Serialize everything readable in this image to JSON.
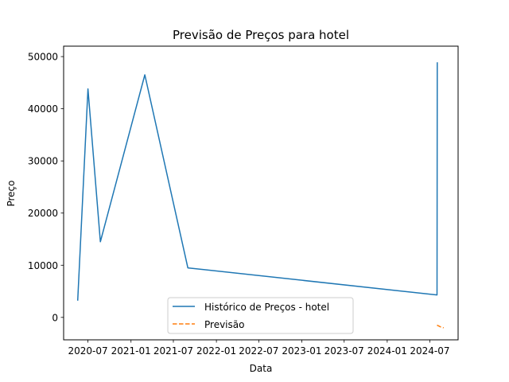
{
  "chart_data": {
    "type": "line",
    "title": "Previsão de Preços para hotel",
    "xlabel": "Data",
    "ylabel": "Preço",
    "x_ticks": [
      "2020-07",
      "2021-01",
      "2021-07",
      "2022-01",
      "2022-07",
      "2023-01",
      "2023-07",
      "2024-01",
      "2024-07"
    ],
    "y_ticks": [
      "0",
      "10000",
      "20000",
      "30000",
      "40000",
      "50000"
    ],
    "ylim": [
      -4300,
      52000
    ],
    "xlim": [
      "2020-03-19",
      "2024-10-30"
    ],
    "grid": false,
    "legend_position": "lower center",
    "series": [
      {
        "name": "Histórico de Preços - hotel",
        "color": "#1f77b4",
        "style": "solid",
        "x": [
          "2020-05-18",
          "2020-07-01",
          "2020-08-23",
          "2021-03-01",
          "2021-09-01",
          "2024-08-01",
          "2024-08-02"
        ],
        "y": [
          3200,
          43800,
          14500,
          46500,
          9500,
          4300,
          48900
        ]
      },
      {
        "name": "Previsão",
        "color": "#ff7f0e",
        "style": "dashed",
        "x": [
          "2024-08-01",
          "2024-08-15",
          "2024-08-29"
        ],
        "y": [
          -1500,
          -1800,
          -2000
        ]
      }
    ]
  }
}
